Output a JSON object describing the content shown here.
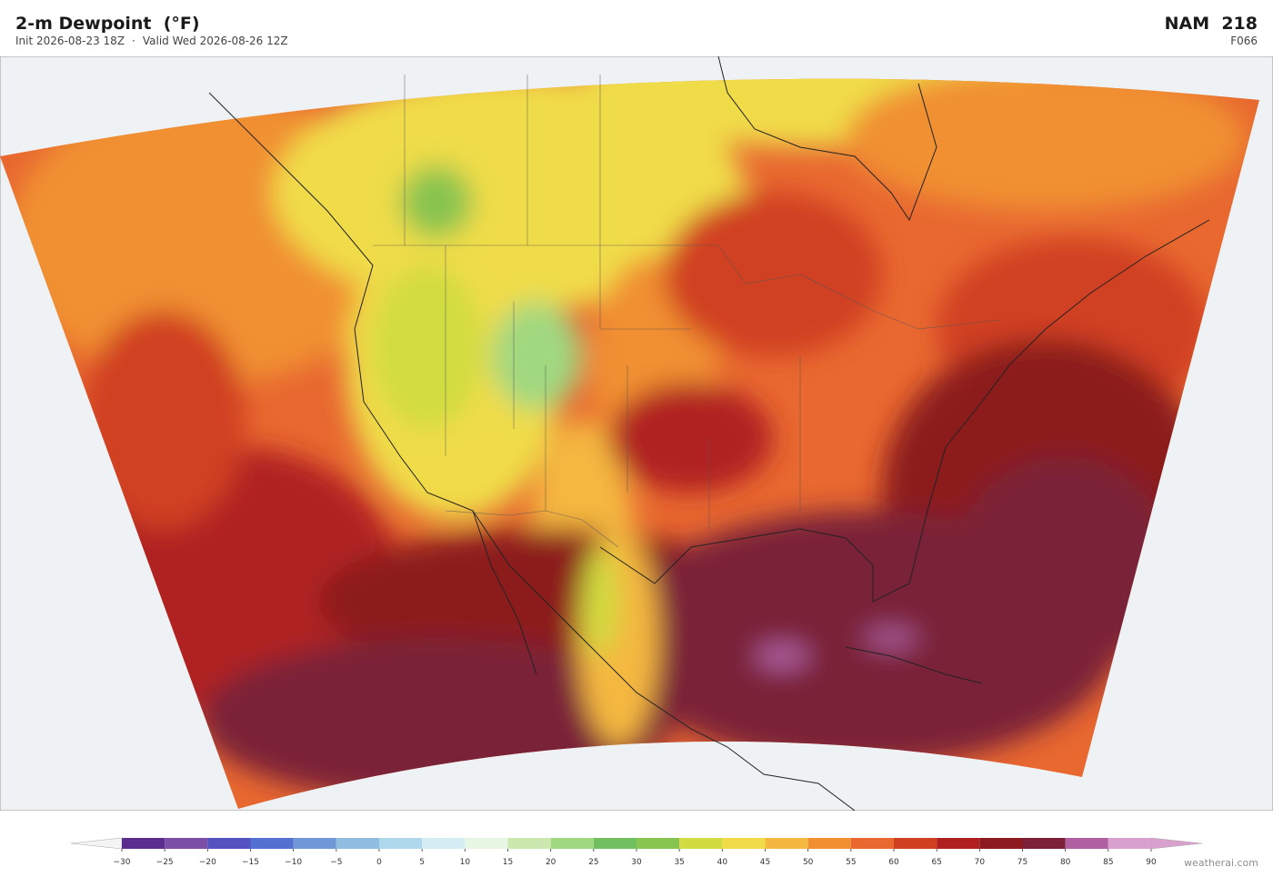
{
  "header": {
    "title": "2-m Dewpoint  (°F)",
    "init": "Init 2026-08-23 18Z",
    "separator": "·",
    "valid": "Valid Wed 2026-08-26 12Z",
    "model": "NAM  218",
    "forecast_hour": "F066"
  },
  "colorbar": {
    "ticks": [
      {
        "value": -30,
        "label": "−30"
      },
      {
        "value": -25,
        "label": "−25"
      },
      {
        "value": -20,
        "label": "−20"
      },
      {
        "value": -15,
        "label": "−15"
      },
      {
        "value": -10,
        "label": "−10"
      },
      {
        "value": -5,
        "label": "−5"
      },
      0,
      5,
      10,
      15,
      20,
      25,
      30,
      35,
      40,
      45,
      50,
      55,
      60,
      65,
      70,
      75,
      80,
      85,
      90
    ],
    "colors": [
      "#5b2d8e",
      "#7b4fa6",
      "#5451c0",
      "#5470d0",
      "#7098d8",
      "#90bce0",
      "#b0d8ec",
      "#d4ecf2",
      "#e8f6e4",
      "#cce8b0",
      "#a0d880",
      "#70c060",
      "#88c450",
      "#d0dc40",
      "#f0dc48",
      "#f4b840",
      "#f09030",
      "#e86830",
      "#d04020",
      "#b02020",
      "#8c1a1e",
      "#7a2038",
      "#b060a0",
      "#d8a0cc"
    ]
  },
  "credit": "weatherai.com"
}
